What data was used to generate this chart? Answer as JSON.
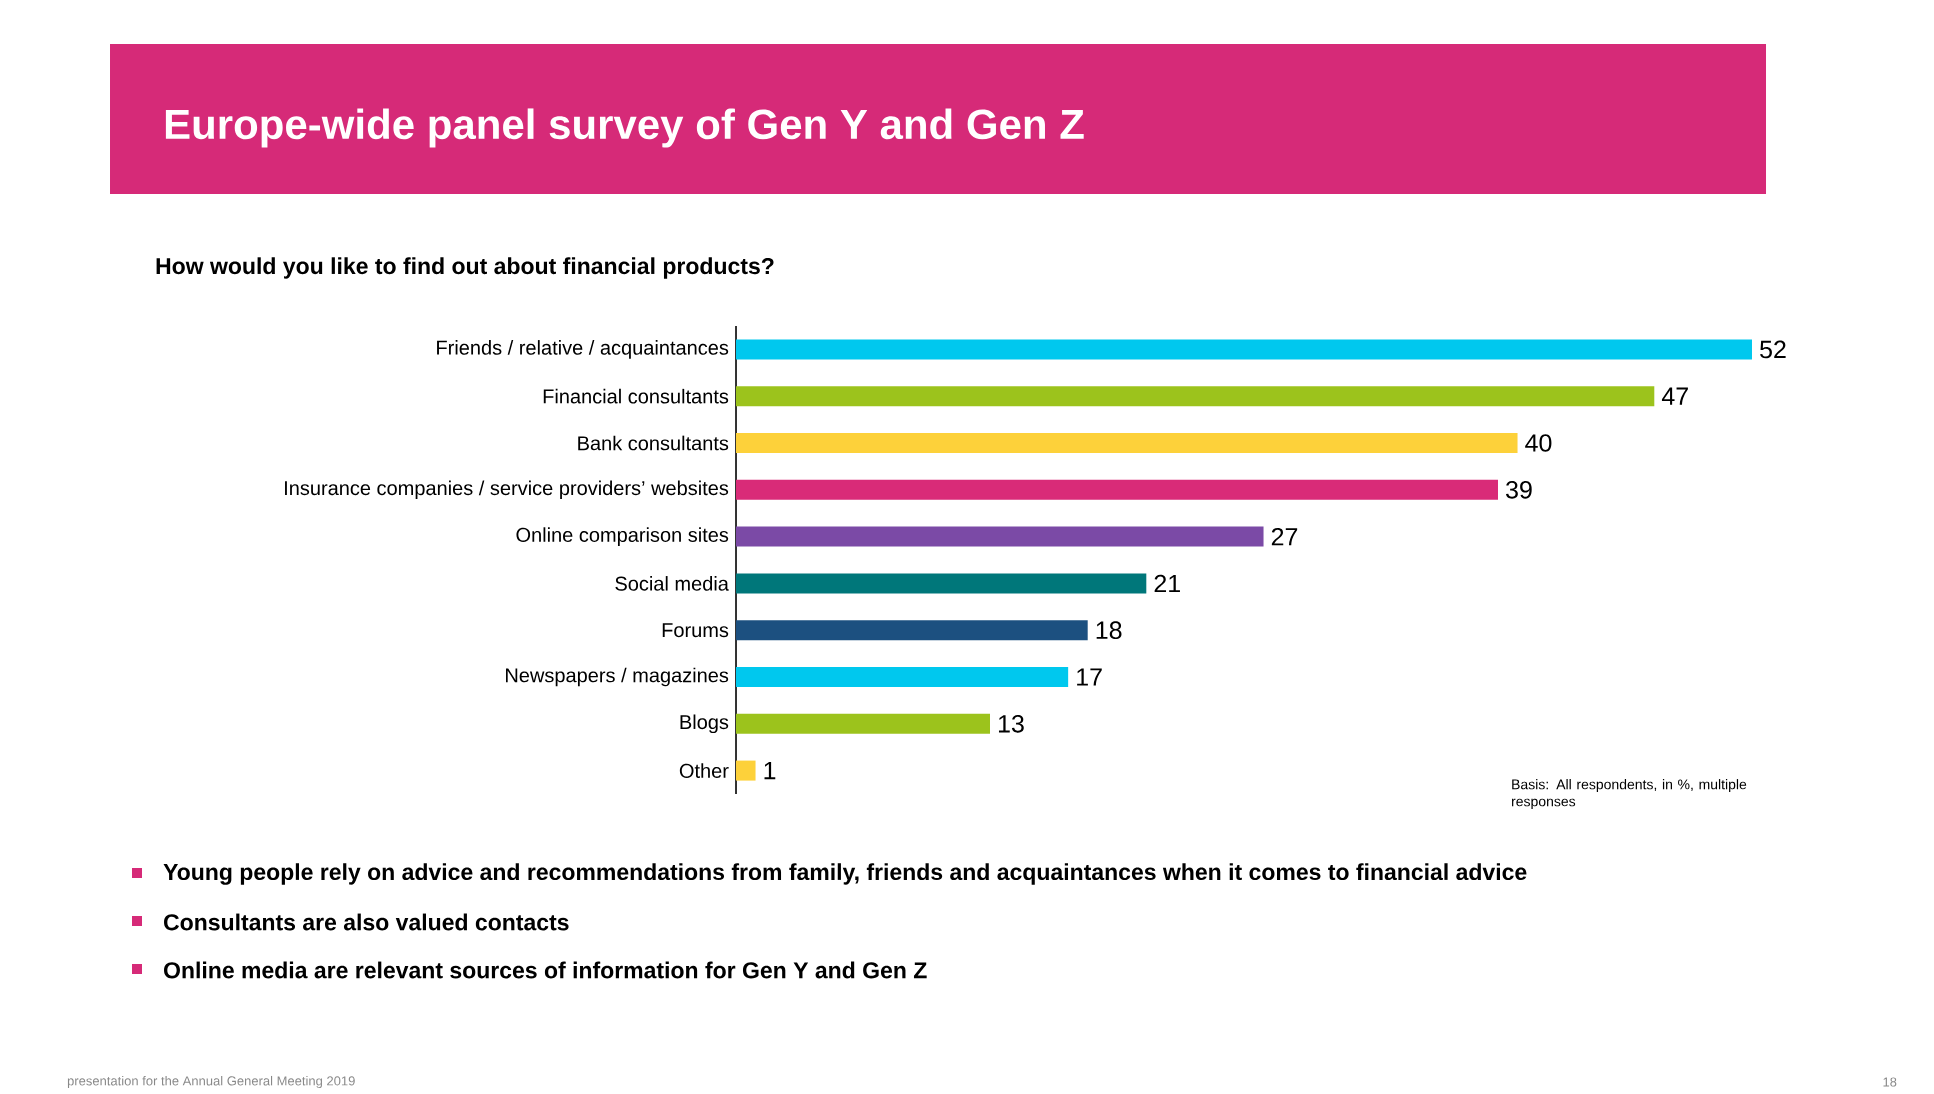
{
  "chart_data": {
    "type": "bar",
    "orientation": "horizontal",
    "title": "Europe-wide panel survey of Gen Y and Gen Z",
    "subtitle": "How would you like to find out about financial products?",
    "categories": [
      "Friends / relative / acquaintances",
      "Financial consultants",
      "Bank consultants",
      "Insurance companies / service providers’ websites",
      "Online comparison sites",
      "Social media",
      "Forums",
      "Newspapers / magazines",
      "Blogs",
      "Other"
    ],
    "values": [
      52,
      47,
      40,
      39,
      27,
      21,
      18,
      17,
      13,
      1
    ],
    "colors": [
      "#00c8ee",
      "#9cc31c",
      "#fdd13a",
      "#d92b78",
      "#7b4aa6",
      "#00777a",
      "#1c5080",
      "#00c8ee",
      "#9cc31c",
      "#fdd13a"
    ],
    "data_labels": true,
    "annotations": [
      "Basis: All respondents, in %, multiple responses",
      "Young people rely on advice and recommendations from family, friends and acquaintances when it comes to financial advice",
      "Consultants are also valued contacts",
      "Online media are relevant sources of information for Gen Y and Gen Z",
      "presentation for the Annual General Meeting 2019",
      "18"
    ]
  }
}
